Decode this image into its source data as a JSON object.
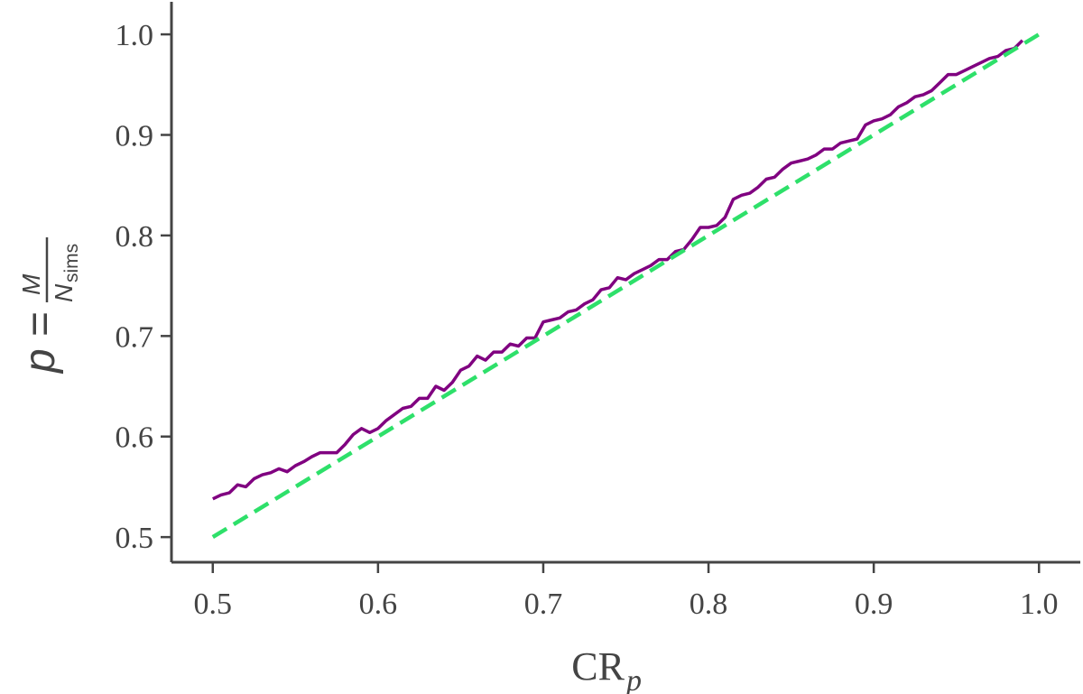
{
  "chart_data": {
    "type": "line",
    "title": "",
    "xlabel": {
      "main": "CR",
      "sub": "p"
    },
    "ylabel": {
      "lhs": "p",
      "eq": "=",
      "numerator": "M",
      "denom_main": "N",
      "denom_sub": "sims"
    },
    "xlim": [
      0.475,
      1.025
    ],
    "ylim": [
      0.475,
      1.027
    ],
    "xticks": [
      0.5,
      0.6,
      0.7,
      0.8,
      0.9,
      1.0
    ],
    "xtick_labels": [
      "0.5",
      "0.6",
      "0.7",
      "0.8",
      "0.9",
      "1.0"
    ],
    "yticks": [
      0.5,
      0.6,
      0.7,
      0.8,
      0.9,
      1.0
    ],
    "ytick_labels": [
      "0.5",
      "0.6",
      "0.7",
      "0.8",
      "0.9",
      "1.0"
    ],
    "grid": false,
    "legend": "none",
    "series": [
      {
        "style": "solid",
        "color": "#800080",
        "x": [
          0.5,
          0.505,
          0.51,
          0.515,
          0.52,
          0.525,
          0.53,
          0.535,
          0.54,
          0.545,
          0.55,
          0.555,
          0.56,
          0.565,
          0.57,
          0.575,
          0.58,
          0.585,
          0.59,
          0.595,
          0.6,
          0.605,
          0.61,
          0.615,
          0.62,
          0.625,
          0.63,
          0.635,
          0.64,
          0.645,
          0.65,
          0.655,
          0.66,
          0.665,
          0.67,
          0.675,
          0.68,
          0.685,
          0.69,
          0.695,
          0.7,
          0.705,
          0.71,
          0.715,
          0.72,
          0.725,
          0.73,
          0.735,
          0.74,
          0.745,
          0.75,
          0.755,
          0.76,
          0.765,
          0.77,
          0.775,
          0.78,
          0.785,
          0.79,
          0.795,
          0.8,
          0.805,
          0.81,
          0.815,
          0.82,
          0.825,
          0.83,
          0.835,
          0.84,
          0.845,
          0.85,
          0.855,
          0.86,
          0.865,
          0.87,
          0.875,
          0.88,
          0.885,
          0.89,
          0.895,
          0.9,
          0.905,
          0.91,
          0.915,
          0.92,
          0.925,
          0.93,
          0.935,
          0.94,
          0.945,
          0.95,
          0.955,
          0.96,
          0.965,
          0.97,
          0.975,
          0.98,
          0.985,
          0.99
        ],
        "y": [
          0.538,
          0.542,
          0.544,
          0.552,
          0.55,
          0.558,
          0.562,
          0.564,
          0.568,
          0.565,
          0.571,
          0.575,
          0.58,
          0.584,
          0.584,
          0.584,
          0.592,
          0.602,
          0.608,
          0.604,
          0.608,
          0.616,
          0.622,
          0.628,
          0.63,
          0.638,
          0.638,
          0.65,
          0.646,
          0.654,
          0.666,
          0.67,
          0.68,
          0.676,
          0.684,
          0.684,
          0.692,
          0.69,
          0.698,
          0.698,
          0.714,
          0.716,
          0.718,
          0.724,
          0.726,
          0.732,
          0.736,
          0.746,
          0.748,
          0.758,
          0.756,
          0.762,
          0.766,
          0.77,
          0.776,
          0.776,
          0.784,
          0.786,
          0.796,
          0.808,
          0.808,
          0.81,
          0.818,
          0.836,
          0.84,
          0.842,
          0.848,
          0.856,
          0.858,
          0.866,
          0.872,
          0.874,
          0.876,
          0.88,
          0.886,
          0.886,
          0.892,
          0.894,
          0.896,
          0.91,
          0.914,
          0.916,
          0.92,
          0.928,
          0.932,
          0.938,
          0.94,
          0.944,
          0.952,
          0.96,
          0.96,
          0.964,
          0.968,
          0.972,
          0.976,
          0.978,
          0.984,
          0.986,
          0.994
        ]
      },
      {
        "style": "dashed",
        "color": "#2ee06a",
        "x": [
          0.5,
          1.0
        ],
        "y": [
          0.5,
          1.0
        ]
      }
    ]
  }
}
